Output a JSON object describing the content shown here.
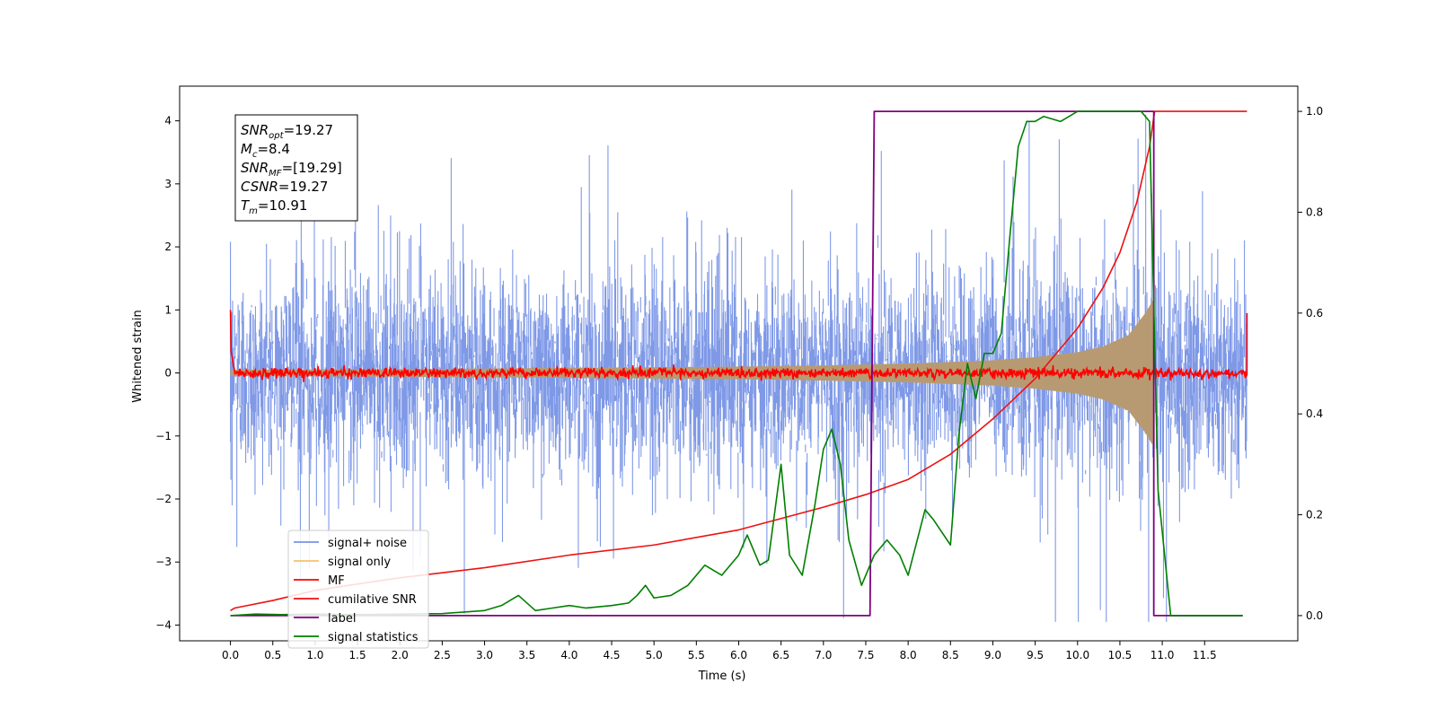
{
  "chart_data": {
    "type": "line",
    "xlabel": "Time (s)",
    "ylabel_left": "Whitened strain",
    "ylabel_right": "",
    "xlim": [
      -0.6,
      12.6
    ],
    "ylim_left": [
      -4.25,
      4.55
    ],
    "ylim_right": [
      -0.05,
      1.05
    ],
    "x_ticks": [
      0.0,
      0.5,
      1.0,
      1.5,
      2.0,
      2.5,
      3.0,
      3.5,
      4.0,
      4.5,
      5.0,
      5.5,
      6.0,
      6.5,
      7.0,
      7.5,
      8.0,
      8.5,
      9.0,
      9.5,
      10.0,
      10.5,
      11.0,
      11.5
    ],
    "x_tick_labels": [
      "0.0",
      "0.5",
      "1.0",
      "1.5",
      "2.0",
      "2.5",
      "3.0",
      "3.5",
      "4.0",
      "4.5",
      "5.0",
      "5.5",
      "6.0",
      "6.5",
      "7.0",
      "7.5",
      "8.0",
      "8.5",
      "9.0",
      "9.5",
      "10.0",
      "10.5",
      "11.0",
      "11.5"
    ],
    "y_left_ticks": [
      -4,
      -3,
      -2,
      -1,
      0,
      1,
      2,
      3,
      4
    ],
    "y_left_tick_labels": [
      "−4",
      "−3",
      "−2",
      "−1",
      "0",
      "1",
      "2",
      "3",
      "4"
    ],
    "y_right_ticks": [
      0.0,
      0.2,
      0.4,
      0.6,
      0.8,
      1.0
    ],
    "y_right_tick_labels": [
      "0.0",
      "0.2",
      "0.4",
      "0.6",
      "0.8",
      "1.0"
    ],
    "grid": false,
    "legend_placement": "lower-left",
    "annotation": {
      "lines": [
        {
          "var": "SNR",
          "sub": "opt",
          "value": "=19.27"
        },
        {
          "var": "M",
          "sub": "c",
          "value": "=8.4"
        },
        {
          "var": "SNR",
          "sub": "MF",
          "value": "=[19.29]"
        },
        {
          "var": "CSNR",
          "sub": "",
          "value": "=19.27"
        },
        {
          "var": "T",
          "sub": "m",
          "value": "=10.91"
        }
      ]
    },
    "series": [
      {
        "name": "signal+ noise",
        "axis": "left",
        "color": "#7893e6",
        "description_of_values": "noise band roughly ±1.5 with spikes to about ±4 over 0–12 s"
      },
      {
        "name": "signal only",
        "axis": "left",
        "color": "#f5c26b",
        "envelope": {
          "x": [
            0,
            2,
            4,
            6,
            7,
            8,
            9,
            9.5,
            10,
            10.3,
            10.6,
            10.8,
            10.91
          ],
          "amp": [
            0.05,
            0.06,
            0.08,
            0.1,
            0.12,
            0.15,
            0.2,
            0.25,
            0.33,
            0.42,
            0.6,
            0.95,
            1.2
          ]
        }
      },
      {
        "name": "MF",
        "axis": "left",
        "color": "#ff0000",
        "description_of_values": "near 0 with small fluctuations (±0.1), spikes to about 1.0 at 0 s and 12 s"
      },
      {
        "name": "cumilative SNR",
        "axis": "right",
        "color": "#ee1111",
        "x": [
          0.0,
          0.05,
          0.5,
          1.0,
          2.0,
          3.0,
          4.0,
          5.0,
          6.0,
          7.0,
          7.5,
          8.0,
          8.5,
          9.0,
          9.5,
          10.0,
          10.3,
          10.5,
          10.7,
          10.85,
          10.91,
          12.0
        ],
        "y": [
          0.01,
          0.015,
          0.03,
          0.05,
          0.075,
          0.095,
          0.12,
          0.14,
          0.17,
          0.215,
          0.24,
          0.27,
          0.32,
          0.39,
          0.47,
          0.57,
          0.65,
          0.72,
          0.82,
          0.93,
          1.0,
          1.0
        ]
      },
      {
        "name": "label",
        "axis": "right",
        "color": "#800080",
        "x": [
          0.0,
          7.55,
          7.6,
          10.9,
          10.9,
          11.95
        ],
        "y": [
          0.0,
          0.0,
          1.0,
          1.0,
          0.0,
          0.0
        ]
      },
      {
        "name": "signal statistics",
        "axis": "right",
        "color": "#008000",
        "x": [
          0.0,
          0.3,
          0.6,
          1.0,
          1.5,
          2.0,
          2.5,
          3.0,
          3.2,
          3.4,
          3.6,
          3.8,
          4.0,
          4.2,
          4.5,
          4.7,
          4.8,
          4.9,
          5.0,
          5.2,
          5.4,
          5.6,
          5.8,
          6.0,
          6.1,
          6.25,
          6.35,
          6.5,
          6.6,
          6.75,
          6.9,
          7.0,
          7.1,
          7.2,
          7.3,
          7.45,
          7.6,
          7.75,
          7.9,
          8.0,
          8.2,
          8.3,
          8.5,
          8.6,
          8.7,
          8.8,
          8.9,
          9.0,
          9.1,
          9.2,
          9.3,
          9.4,
          9.5,
          9.6,
          9.8,
          10.0,
          10.5,
          10.75,
          10.85,
          10.95,
          11.1,
          11.95
        ],
        "y": [
          0.0,
          0.003,
          0.002,
          0.003,
          0.002,
          0.003,
          0.004,
          0.01,
          0.02,
          0.04,
          0.01,
          0.015,
          0.02,
          0.015,
          0.02,
          0.025,
          0.04,
          0.06,
          0.035,
          0.04,
          0.06,
          0.1,
          0.08,
          0.12,
          0.16,
          0.1,
          0.11,
          0.3,
          0.12,
          0.08,
          0.22,
          0.33,
          0.37,
          0.3,
          0.15,
          0.06,
          0.12,
          0.15,
          0.12,
          0.08,
          0.21,
          0.19,
          0.14,
          0.36,
          0.5,
          0.43,
          0.52,
          0.52,
          0.56,
          0.75,
          0.93,
          0.98,
          0.98,
          0.99,
          0.98,
          1.0,
          1.0,
          1.0,
          0.98,
          0.25,
          0.0,
          0.0
        ]
      }
    ]
  }
}
